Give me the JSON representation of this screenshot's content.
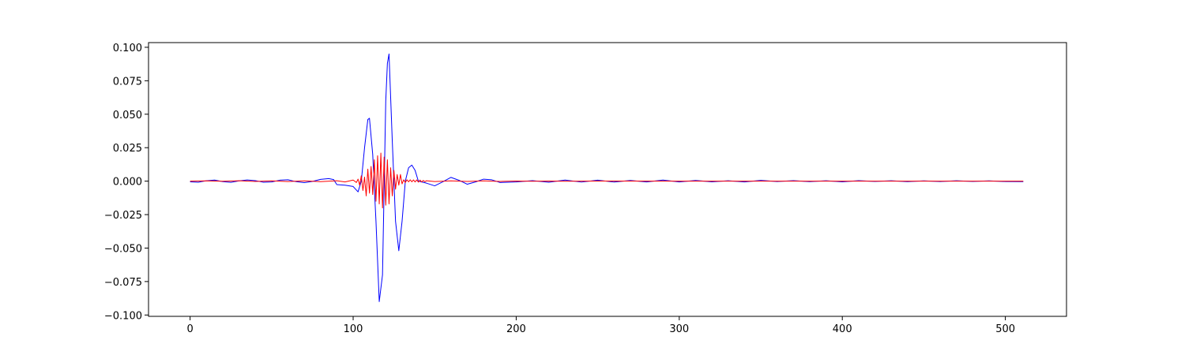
{
  "chart_data": {
    "type": "line",
    "title": "",
    "xlabel": "",
    "ylabel": "",
    "xlim": [
      -25.5,
      537.5
    ],
    "ylim": [
      -0.101,
      0.1035
    ],
    "grid": false,
    "legend": "none",
    "xticks": [
      0,
      100,
      200,
      300,
      400,
      500
    ],
    "xtick_labels": [
      "0",
      "100",
      "200",
      "300",
      "400",
      "500"
    ],
    "yticks": [
      -0.1,
      -0.075,
      -0.05,
      -0.025,
      0.0,
      0.025,
      0.05,
      0.075,
      0.1
    ],
    "ytick_labels": [
      "−0.100",
      "−0.075",
      "−0.050",
      "−0.025",
      "0.000",
      "0.025",
      "0.050",
      "0.075",
      "0.100"
    ],
    "series": [
      {
        "color": "#0000ff",
        "x": [
          0,
          5,
          10,
          15,
          20,
          25,
          30,
          35,
          40,
          45,
          50,
          55,
          60,
          65,
          70,
          75,
          80,
          85,
          88,
          90,
          95,
          100,
          103,
          105,
          107,
          109,
          110,
          112,
          114,
          116,
          118,
          120,
          121,
          122,
          124,
          126,
          128,
          130,
          132,
          134,
          136,
          138,
          140,
          145,
          150,
          155,
          160,
          165,
          170,
          175,
          180,
          185,
          190,
          200,
          210,
          220,
          230,
          240,
          250,
          260,
          270,
          280,
          290,
          300,
          310,
          320,
          330,
          340,
          350,
          360,
          370,
          380,
          390,
          400,
          410,
          420,
          430,
          440,
          450,
          460,
          470,
          480,
          490,
          500,
          511
        ],
        "y": [
          -0.0005,
          -0.0008,
          0.0003,
          0.0008,
          -0.0004,
          -0.0009,
          0.0002,
          0.0009,
          0.0004,
          -0.0008,
          -0.0006,
          0.0007,
          0.001,
          -0.0004,
          -0.0011,
          -0.0002,
          0.0013,
          0.0019,
          0.0012,
          -0.0026,
          -0.003,
          -0.004,
          -0.008,
          0.0,
          0.025,
          0.046,
          0.047,
          0.02,
          -0.03,
          -0.09,
          -0.07,
          0.06,
          0.088,
          0.095,
          0.03,
          -0.03,
          -0.052,
          -0.03,
          0.0,
          0.01,
          0.012,
          0.008,
          0.0,
          -0.0015,
          -0.0035,
          -0.0005,
          0.0028,
          0.0006,
          -0.0023,
          -0.0006,
          0.0015,
          0.001,
          -0.001,
          -0.0006,
          0.0004,
          -0.0008,
          0.0008,
          -0.0007,
          0.0007,
          -0.0007,
          0.0005,
          -0.0006,
          0.0008,
          -0.0006,
          0.0005,
          -0.0005,
          0.0003,
          -0.0006,
          0.0006,
          -0.0003,
          0.0004,
          -0.0004,
          0.0003,
          -0.0005,
          0.0004,
          -0.0002,
          0.0003,
          -0.0004,
          0.0002,
          -0.0003,
          0.0003,
          -0.0002,
          0.0002,
          -0.0003,
          -0.0004
        ]
      },
      {
        "color": "#ff0000",
        "x": [
          0,
          10,
          20,
          30,
          40,
          50,
          60,
          70,
          80,
          90,
          95,
          100,
          102,
          103,
          104,
          105,
          106,
          107,
          108,
          109,
          110,
          111,
          112,
          113,
          114,
          115,
          116,
          117,
          118,
          119,
          120,
          121,
          122,
          123,
          124,
          125,
          126,
          127,
          128,
          129,
          130,
          131,
          132,
          133,
          134,
          135,
          136,
          137,
          138,
          139,
          140,
          141,
          142,
          143,
          144,
          145,
          150,
          160,
          170,
          180,
          190,
          200,
          210,
          220,
          230,
          250,
          300,
          350,
          400,
          450,
          511
        ],
        "y": [
          0.0,
          0.0002,
          -0.0001,
          0.0003,
          -0.0002,
          0.0002,
          -0.0003,
          0.0002,
          -0.0004,
          0.0003,
          -0.0006,
          0.0008,
          -0.001,
          0.0015,
          -0.003,
          0.004,
          -0.007,
          0.003,
          -0.011,
          0.009,
          -0.009,
          0.011,
          -0.01,
          0.016,
          -0.015,
          0.019,
          -0.017,
          0.021,
          -0.02,
          0.018,
          -0.018,
          0.016,
          -0.017,
          0.01,
          -0.011,
          0.008,
          -0.006,
          0.005,
          -0.003,
          0.005,
          -0.002,
          0.001,
          -0.001,
          0.001,
          -0.0005,
          0.001,
          -0.0005,
          0.0009,
          -0.0006,
          0.0009,
          -0.0007,
          0.0008,
          -0.0006,
          0.0005,
          -0.0004,
          0.0003,
          -0.0003,
          0.0002,
          -0.0002,
          0.0002,
          -0.0002,
          0.0001,
          -0.0001,
          0.0001,
          -0.0001,
          0.0001,
          0.0,
          0.0,
          0.0,
          0.0,
          0.0
        ]
      }
    ]
  }
}
